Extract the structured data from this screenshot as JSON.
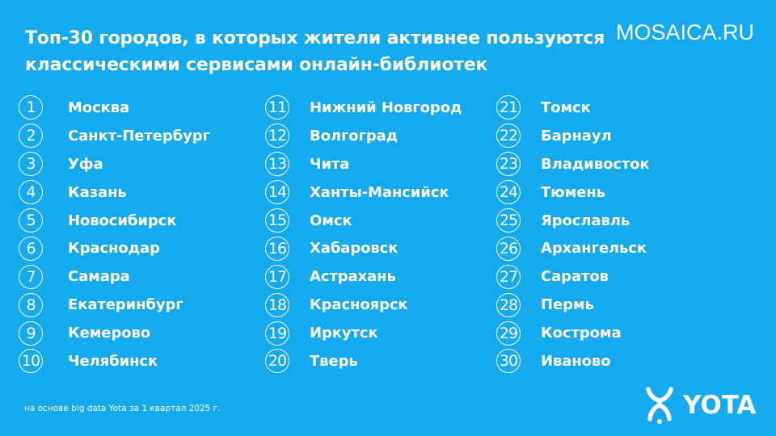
{
  "title": {
    "line1": "Топ-30 городов, в которых жители активнее пользуются",
    "line2": "классическими сервисами онлайн-библиотек"
  },
  "watermark": "MOSAICA.RU",
  "columns": [
    [
      {
        "rank": "1",
        "city": "Москва"
      },
      {
        "rank": "2",
        "city": "Санкт-Петербург"
      },
      {
        "rank": "3",
        "city": "Уфа"
      },
      {
        "rank": "4",
        "city": "Казань"
      },
      {
        "rank": "5",
        "city": "Новосибирск"
      },
      {
        "rank": "6",
        "city": "Краснодар"
      },
      {
        "rank": "7",
        "city": "Самара"
      },
      {
        "rank": "8",
        "city": "Екатеринбург"
      },
      {
        "rank": "9",
        "city": "Кемерово"
      },
      {
        "rank": "10",
        "city": "Челябинск"
      }
    ],
    [
      {
        "rank": "11",
        "city": "Нижний Новгород"
      },
      {
        "rank": "12",
        "city": "Волгоград"
      },
      {
        "rank": "13",
        "city": "Чита"
      },
      {
        "rank": "14",
        "city": "Ханты-Мансийск"
      },
      {
        "rank": "15",
        "city": "Омск"
      },
      {
        "rank": "16",
        "city": "Хабаровск"
      },
      {
        "rank": "17",
        "city": "Астрахань"
      },
      {
        "rank": "18",
        "city": "Красноярск"
      },
      {
        "rank": "19",
        "city": "Иркутск"
      },
      {
        "rank": "20",
        "city": "Тверь"
      }
    ],
    [
      {
        "rank": "21",
        "city": "Томск"
      },
      {
        "rank": "22",
        "city": "Барнаул"
      },
      {
        "rank": "23",
        "city": "Владивосток"
      },
      {
        "rank": "24",
        "city": "Тюмень"
      },
      {
        "rank": "25",
        "city": "Ярославль"
      },
      {
        "rank": "26",
        "city": "Архангельск"
      },
      {
        "rank": "27",
        "city": "Саратов"
      },
      {
        "rank": "28",
        "city": "Пермь"
      },
      {
        "rank": "29",
        "city": "Кострома"
      },
      {
        "rank": "30",
        "city": "Иваново"
      }
    ]
  ],
  "footnote": "на основе big data Yota за 1 квартал 2025 г.",
  "logo": {
    "wordmark": "YOTA",
    "icon": "yota-logo-icon"
  },
  "colors": {
    "background": "#15a9ee",
    "text": "#ffffff"
  }
}
